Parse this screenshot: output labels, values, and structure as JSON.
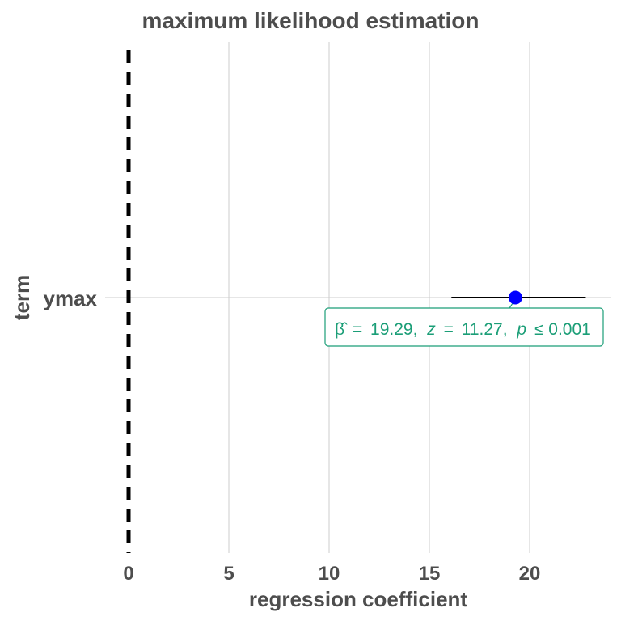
{
  "chart_data": {
    "type": "scatter",
    "title": "maximum likelihood estimation",
    "xlabel": "regression coefficient",
    "ylabel": "term",
    "xlim": [
      0,
      24
    ],
    "xticks": [
      0,
      5,
      10,
      15,
      20
    ],
    "xtick_labels": [
      "0",
      "5",
      "10",
      "15",
      "20"
    ],
    "categories": [
      "ymax"
    ],
    "grid": true,
    "reference_line": {
      "x": 0,
      "style": "dashed",
      "color": "#000000"
    },
    "points": [
      {
        "term": "ymax",
        "estimate": 19.29,
        "conf_low": 16.1,
        "conf_high": 22.8,
        "color": "#0000ff"
      }
    ],
    "annotation": {
      "beta_symbol": "β̂",
      "equals": "=",
      "estimate_text": "19.29,",
      "stat_symbol": "z",
      "stat_text": "11.27,",
      "p_symbol": "p",
      "p_text": "≤ 0.001",
      "color": "#1b9e77"
    }
  }
}
